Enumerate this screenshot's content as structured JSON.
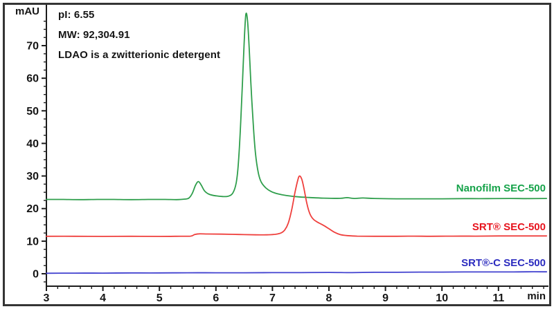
{
  "figure": {
    "background": "#ffffff",
    "border_color": "#343434"
  },
  "annotations": {
    "pi": "pI: 6.55",
    "mw": "MW: 92,304.91",
    "note": "LDAO is a zwitterionic detergent"
  },
  "chart_data": {
    "type": "line",
    "title": "",
    "xlabel": "min",
    "ylabel": "mAU",
    "grid": false,
    "x_axis": {
      "min": 3,
      "max": 11.87,
      "major_ticks": [
        3,
        4,
        5,
        6,
        7,
        8,
        9,
        10,
        11
      ],
      "minor_step": 0.2
    },
    "y_axis": {
      "min": 0,
      "max": 80,
      "major_ticks": [
        0,
        10,
        20,
        30,
        40,
        50,
        60,
        70
      ],
      "minor_step": 2.5
    },
    "series": [
      {
        "name": "Nanofilm SEC-500",
        "line_color": "#2e9e4b",
        "label_color": "#16a34a",
        "baseline_mau": 23.0,
        "peaks": [
          {
            "time_min": 5.7,
            "height_mau": 28.3
          },
          {
            "time_min": 6.53,
            "height_mau": 79.6
          }
        ],
        "points": [
          [
            3.0,
            22.8
          ],
          [
            3.3,
            22.8
          ],
          [
            3.6,
            22.75
          ],
          [
            3.9,
            22.8
          ],
          [
            4.2,
            22.8
          ],
          [
            4.5,
            22.75
          ],
          [
            4.8,
            22.8
          ],
          [
            5.1,
            22.8
          ],
          [
            5.3,
            22.75
          ],
          [
            5.45,
            22.9
          ],
          [
            5.52,
            23.2
          ],
          [
            5.58,
            24.6
          ],
          [
            5.64,
            27.2
          ],
          [
            5.69,
            28.3
          ],
          [
            5.74,
            27.2
          ],
          [
            5.8,
            25.4
          ],
          [
            5.88,
            24.4
          ],
          [
            6.0,
            23.9
          ],
          [
            6.12,
            23.7
          ],
          [
            6.22,
            23.8
          ],
          [
            6.3,
            24.8
          ],
          [
            6.36,
            28.0
          ],
          [
            6.4,
            34.5
          ],
          [
            6.44,
            47.0
          ],
          [
            6.47,
            59.0
          ],
          [
            6.5,
            71.0
          ],
          [
            6.53,
            79.6
          ],
          [
            6.56,
            77.5
          ],
          [
            6.59,
            69.0
          ],
          [
            6.62,
            58.0
          ],
          [
            6.66,
            46.0
          ],
          [
            6.7,
            37.0
          ],
          [
            6.75,
            31.0
          ],
          [
            6.8,
            28.2
          ],
          [
            6.88,
            26.4
          ],
          [
            6.98,
            25.2
          ],
          [
            7.1,
            24.5
          ],
          [
            7.25,
            24.0
          ],
          [
            7.45,
            23.6
          ],
          [
            7.65,
            23.4
          ],
          [
            7.9,
            23.2
          ],
          [
            8.2,
            23.15
          ],
          [
            8.32,
            23.35
          ],
          [
            8.45,
            23.1
          ],
          [
            8.6,
            23.25
          ],
          [
            8.8,
            23.1
          ],
          [
            9.2,
            23.0
          ],
          [
            9.6,
            23.0
          ],
          [
            10.0,
            23.0
          ],
          [
            10.4,
            23.05
          ],
          [
            10.8,
            23.05
          ],
          [
            11.2,
            23.1
          ],
          [
            11.5,
            23.05
          ],
          [
            11.85,
            23.1
          ]
        ]
      },
      {
        "name": "SRT® SEC-500",
        "line_color": "#ef3f3c",
        "label_color": "#e7131d",
        "baseline_mau": 11.5,
        "peaks": [
          {
            "time_min": 7.48,
            "height_mau": 30.0
          }
        ],
        "points": [
          [
            3.0,
            11.5
          ],
          [
            3.5,
            11.5
          ],
          [
            4.0,
            11.45
          ],
          [
            4.5,
            11.5
          ],
          [
            5.0,
            11.45
          ],
          [
            5.3,
            11.5
          ],
          [
            5.55,
            11.55
          ],
          [
            5.62,
            12.0
          ],
          [
            5.7,
            12.25
          ],
          [
            5.85,
            12.2
          ],
          [
            6.1,
            12.15
          ],
          [
            6.4,
            12.05
          ],
          [
            6.7,
            11.95
          ],
          [
            6.9,
            11.95
          ],
          [
            7.05,
            12.1
          ],
          [
            7.15,
            12.5
          ],
          [
            7.22,
            13.5
          ],
          [
            7.28,
            15.5
          ],
          [
            7.34,
            19.5
          ],
          [
            7.4,
            25.0
          ],
          [
            7.45,
            28.8
          ],
          [
            7.48,
            30.0
          ],
          [
            7.52,
            29.0
          ],
          [
            7.56,
            26.0
          ],
          [
            7.61,
            21.5
          ],
          [
            7.66,
            18.5
          ],
          [
            7.72,
            16.8
          ],
          [
            7.8,
            15.8
          ],
          [
            7.9,
            14.9
          ],
          [
            8.0,
            13.8
          ],
          [
            8.1,
            12.7
          ],
          [
            8.2,
            12.0
          ],
          [
            8.32,
            11.7
          ],
          [
            8.5,
            11.55
          ],
          [
            8.8,
            11.5
          ],
          [
            9.2,
            11.5
          ],
          [
            9.5,
            11.55
          ],
          [
            9.8,
            11.5
          ],
          [
            10.2,
            11.55
          ],
          [
            10.6,
            11.55
          ],
          [
            11.0,
            11.6
          ],
          [
            11.4,
            11.6
          ],
          [
            11.85,
            11.6
          ]
        ]
      },
      {
        "name": "SRT®-C SEC-500",
        "line_color": "#4040cf",
        "label_color": "#2b2bbf",
        "baseline_mau": 0.3,
        "peaks": [],
        "points": [
          [
            3.0,
            0.15
          ],
          [
            3.5,
            0.2
          ],
          [
            4.0,
            0.2
          ],
          [
            4.5,
            0.25
          ],
          [
            5.0,
            0.25
          ],
          [
            5.5,
            0.3
          ],
          [
            6.0,
            0.3
          ],
          [
            6.5,
            0.3
          ],
          [
            7.0,
            0.35
          ],
          [
            7.5,
            0.35
          ],
          [
            8.0,
            0.4
          ],
          [
            8.4,
            0.35
          ],
          [
            8.8,
            0.45
          ],
          [
            9.2,
            0.45
          ],
          [
            9.6,
            0.5
          ],
          [
            10.0,
            0.5
          ],
          [
            10.4,
            0.55
          ],
          [
            10.8,
            0.55
          ],
          [
            11.2,
            0.55
          ],
          [
            11.5,
            0.6
          ],
          [
            11.85,
            0.6
          ]
        ]
      }
    ],
    "legend_position": "right-inline-colored-text"
  }
}
